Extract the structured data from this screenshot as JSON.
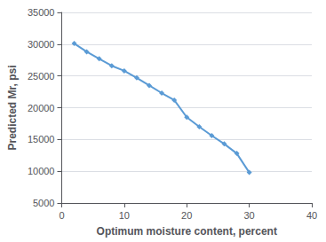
{
  "chart_data": {
    "type": "line",
    "x": [
      2,
      4,
      6,
      8,
      10,
      12,
      14,
      16,
      18,
      20,
      22,
      24,
      26,
      28,
      30
    ],
    "values": [
      30100,
      28800,
      27700,
      26600,
      25800,
      24700,
      23500,
      22300,
      21200,
      18500,
      17000,
      15600,
      14300,
      12800,
      9800
    ],
    "xlabel": "Optimum moisture content, percent",
    "ylabel": "Predicted Mr, psi",
    "xlim": [
      0,
      40
    ],
    "ylim": [
      5000,
      35000
    ],
    "xticks": [
      0,
      10,
      20,
      30,
      40
    ],
    "yticks": [
      5000,
      10000,
      15000,
      20000,
      25000,
      30000,
      35000
    ],
    "color": "#5B9BD5",
    "marker": "diamond",
    "grid": true
  }
}
